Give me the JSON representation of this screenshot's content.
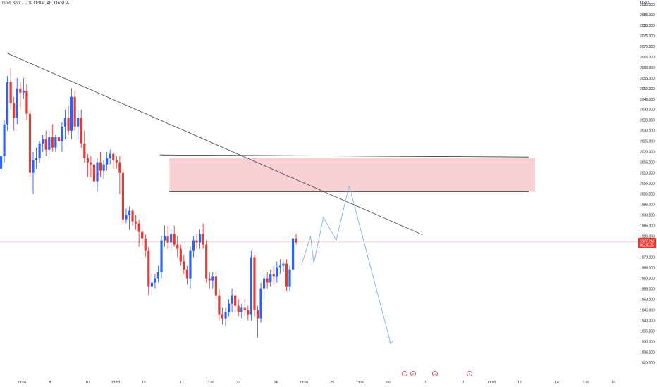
{
  "header": {
    "symbol_title": "Gold Spot / U.S. Dollar, 4h, OANDA",
    "currency": "USD"
  },
  "price_label": {
    "price": "1977.240",
    "countdown": "00:35:25"
  },
  "colors": {
    "up": "#2962ff",
    "down": "#e53935",
    "zone_fill": "#f8d0d5",
    "projection": "#90b7f0",
    "trendline": "#555555",
    "price_line": "#f3a7ae",
    "price_badge": "#e53935"
  },
  "event_icons": [
    {
      "name": "lightning-icon",
      "glyph": "⚡",
      "x_time": "Jun 1 10:00"
    },
    {
      "name": "us-flag-icon",
      "glyph": "★",
      "x_time": "Jun 1 19:00"
    },
    {
      "name": "us-flag-icon",
      "glyph": "★",
      "x_time": "Jun 6 05:00"
    },
    {
      "name": "us-flag-icon",
      "glyph": "★",
      "x_time": "Jun 9 19:00"
    }
  ],
  "chart_data": {
    "type": "candlestick",
    "title": "Gold Spot / U.S. Dollar, 4h, OANDA",
    "ylabel": "USD",
    "ylim": [
      1918,
      2093
    ],
    "yticks": [
      1920.0,
      1925.0,
      1930.0,
      1935.0,
      1940.0,
      1945.0,
      1950.0,
      1955.0,
      1960.0,
      1965.0,
      1970.0,
      1975.0,
      1980.0,
      1985.0,
      1990.0,
      1995.0,
      2000.0,
      2005.0,
      2010.0,
      2015.0,
      2020.0,
      2025.0,
      2030.0,
      2035.0,
      2040.0,
      2045.0,
      2050.0,
      2055.0,
      2060.0,
      2065.0,
      2070.0,
      2075.0,
      2080.0,
      2085.0,
      2090.0
    ],
    "ytick_labels": [
      "1920.000",
      "1925.000",
      "1930.000",
      "1935.000",
      "1940.000",
      "1945.000",
      "1950.000",
      "1955.000",
      "1960.000",
      "1965.000",
      "1970.000",
      "1975.000",
      "1980.000",
      "1985.000",
      "1990.000",
      "1995.000",
      "2000.000",
      "2005.000",
      "2010.000",
      "2015.000",
      "2020.000",
      "2025.000",
      "2030.000",
      "2035.000",
      "2040.000",
      "2045.000",
      "2050.000",
      "2055.000",
      "2060.000",
      "2065.000",
      "2070.000",
      "2075.000",
      "2080.000",
      "2085.000",
      "2090.000"
    ],
    "xtick_labels": [
      "13:00",
      "8",
      "10",
      "13:00",
      "15",
      "17",
      "13:00",
      "22",
      "24",
      "13:00",
      "29",
      "13:00",
      "Jun",
      "5",
      "7",
      "13:00",
      "12",
      "14",
      "13:00",
      "19"
    ],
    "candles": [
      {
        "o": 2012,
        "h": 2020,
        "l": 2010,
        "c": 2018
      },
      {
        "o": 2018,
        "h": 2035,
        "l": 2015,
        "c": 2033
      },
      {
        "o": 2033,
        "h": 2056,
        "l": 2030,
        "c": 2053
      },
      {
        "o": 2053,
        "h": 2060,
        "l": 2040,
        "c": 2043
      },
      {
        "o": 2043,
        "h": 2046,
        "l": 2030,
        "c": 2036
      },
      {
        "o": 2036,
        "h": 2055,
        "l": 2033,
        "c": 2050
      },
      {
        "o": 2050,
        "h": 2053,
        "l": 2040,
        "c": 2048
      },
      {
        "o": 2048,
        "h": 2055,
        "l": 2045,
        "c": 2049
      },
      {
        "o": 2049,
        "h": 2052,
        "l": 2035,
        "c": 2038
      },
      {
        "o": 2038,
        "h": 2040,
        "l": 2008,
        "c": 2010
      },
      {
        "o": 2010,
        "h": 2020,
        "l": 2000,
        "c": 2016
      },
      {
        "o": 2016,
        "h": 2022,
        "l": 2012,
        "c": 2017
      },
      {
        "o": 2017,
        "h": 2025,
        "l": 2015,
        "c": 2024
      },
      {
        "o": 2024,
        "h": 2028,
        "l": 2020,
        "c": 2026
      },
      {
        "o": 2026,
        "h": 2030,
        "l": 2018,
        "c": 2021
      },
      {
        "o": 2021,
        "h": 2030,
        "l": 2019,
        "c": 2027
      },
      {
        "o": 2027,
        "h": 2033,
        "l": 2020,
        "c": 2022
      },
      {
        "o": 2022,
        "h": 2028,
        "l": 2020,
        "c": 2027
      },
      {
        "o": 2027,
        "h": 2034,
        "l": 2023,
        "c": 2025
      },
      {
        "o": 2025,
        "h": 2034,
        "l": 2020,
        "c": 2032
      },
      {
        "o": 2032,
        "h": 2040,
        "l": 2026,
        "c": 2036
      },
      {
        "o": 2036,
        "h": 2042,
        "l": 2028,
        "c": 2030
      },
      {
        "o": 2030,
        "h": 2050,
        "l": 2026,
        "c": 2046
      },
      {
        "o": 2046,
        "h": 2049,
        "l": 2030,
        "c": 2032
      },
      {
        "o": 2032,
        "h": 2040,
        "l": 2026,
        "c": 2036
      },
      {
        "o": 2036,
        "h": 2040,
        "l": 2022,
        "c": 2024
      },
      {
        "o": 2024,
        "h": 2030,
        "l": 2015,
        "c": 2017
      },
      {
        "o": 2017,
        "h": 2019,
        "l": 2008,
        "c": 2015
      },
      {
        "o": 2015,
        "h": 2018,
        "l": 2008,
        "c": 2014
      },
      {
        "o": 2014,
        "h": 2016,
        "l": 2003,
        "c": 2006
      },
      {
        "o": 2006,
        "h": 2017,
        "l": 2001,
        "c": 2015
      },
      {
        "o": 2015,
        "h": 2020,
        "l": 2008,
        "c": 2011
      },
      {
        "o": 2011,
        "h": 2016,
        "l": 2007,
        "c": 2014
      },
      {
        "o": 2014,
        "h": 2020,
        "l": 2011,
        "c": 2017
      },
      {
        "o": 2017,
        "h": 2021,
        "l": 2014,
        "c": 2019
      },
      {
        "o": 2019,
        "h": 2020,
        "l": 2012,
        "c": 2016
      },
      {
        "o": 2016,
        "h": 2018,
        "l": 2012,
        "c": 2015
      },
      {
        "o": 2015,
        "h": 2018,
        "l": 2000,
        "c": 2010
      },
      {
        "o": 2010,
        "h": 2012,
        "l": 1986,
        "c": 1988
      },
      {
        "o": 1988,
        "h": 1993,
        "l": 1986,
        "c": 1990
      },
      {
        "o": 1990,
        "h": 1994,
        "l": 1983,
        "c": 1992
      },
      {
        "o": 1992,
        "h": 1993,
        "l": 1985,
        "c": 1987
      },
      {
        "o": 1987,
        "h": 1990,
        "l": 1983,
        "c": 1986
      },
      {
        "o": 1986,
        "h": 1988,
        "l": 1975,
        "c": 1982
      },
      {
        "o": 1982,
        "h": 1985,
        "l": 1975,
        "c": 1979
      },
      {
        "o": 1979,
        "h": 1981,
        "l": 1970,
        "c": 1973
      },
      {
        "o": 1973,
        "h": 1975,
        "l": 1952,
        "c": 1956
      },
      {
        "o": 1956,
        "h": 1962,
        "l": 1952,
        "c": 1958
      },
      {
        "o": 1958,
        "h": 1962,
        "l": 1955,
        "c": 1960
      },
      {
        "o": 1960,
        "h": 1966,
        "l": 1958,
        "c": 1963
      },
      {
        "o": 1963,
        "h": 1980,
        "l": 1960,
        "c": 1978
      },
      {
        "o": 1978,
        "h": 1985,
        "l": 1975,
        "c": 1980
      },
      {
        "o": 1980,
        "h": 1985,
        "l": 1974,
        "c": 1977
      },
      {
        "o": 1977,
        "h": 1983,
        "l": 1973,
        "c": 1981
      },
      {
        "o": 1981,
        "h": 1985,
        "l": 1975,
        "c": 1976
      },
      {
        "o": 1976,
        "h": 1980,
        "l": 1970,
        "c": 1974
      },
      {
        "o": 1974,
        "h": 1976,
        "l": 1966,
        "c": 1968
      },
      {
        "o": 1968,
        "h": 1971,
        "l": 1962,
        "c": 1964
      },
      {
        "o": 1964,
        "h": 1966,
        "l": 1957,
        "c": 1960
      },
      {
        "o": 1960,
        "h": 1975,
        "l": 1955,
        "c": 1973
      },
      {
        "o": 1973,
        "h": 1980,
        "l": 1970,
        "c": 1978
      },
      {
        "o": 1978,
        "h": 1981,
        "l": 1974,
        "c": 1977
      },
      {
        "o": 1977,
        "h": 1983,
        "l": 1974,
        "c": 1981
      },
      {
        "o": 1981,
        "h": 1986,
        "l": 1974,
        "c": 1976
      },
      {
        "o": 1976,
        "h": 1978,
        "l": 1958,
        "c": 1960
      },
      {
        "o": 1960,
        "h": 1963,
        "l": 1955,
        "c": 1959
      },
      {
        "o": 1959,
        "h": 1963,
        "l": 1955,
        "c": 1961
      },
      {
        "o": 1961,
        "h": 1963,
        "l": 1950,
        "c": 1952
      },
      {
        "o": 1952,
        "h": 1955,
        "l": 1940,
        "c": 1943
      },
      {
        "o": 1943,
        "h": 1946,
        "l": 1938,
        "c": 1941
      },
      {
        "o": 1941,
        "h": 1946,
        "l": 1937,
        "c": 1944
      },
      {
        "o": 1944,
        "h": 1950,
        "l": 1942,
        "c": 1948
      },
      {
        "o": 1948,
        "h": 1955,
        "l": 1944,
        "c": 1952
      },
      {
        "o": 1952,
        "h": 1954,
        "l": 1944,
        "c": 1947
      },
      {
        "o": 1947,
        "h": 1950,
        "l": 1942,
        "c": 1944
      },
      {
        "o": 1944,
        "h": 1948,
        "l": 1941,
        "c": 1946
      },
      {
        "o": 1946,
        "h": 1950,
        "l": 1942,
        "c": 1945
      },
      {
        "o": 1945,
        "h": 1947,
        "l": 1940,
        "c": 1943
      },
      {
        "o": 1943,
        "h": 1973,
        "l": 1940,
        "c": 1970
      },
      {
        "o": 1970,
        "h": 1971,
        "l": 1942,
        "c": 1945
      },
      {
        "o": 1945,
        "h": 1947,
        "l": 1932,
        "c": 1941
      },
      {
        "o": 1941,
        "h": 1958,
        "l": 1939,
        "c": 1955
      },
      {
        "o": 1955,
        "h": 1962,
        "l": 1950,
        "c": 1960
      },
      {
        "o": 1960,
        "h": 1963,
        "l": 1955,
        "c": 1958
      },
      {
        "o": 1958,
        "h": 1964,
        "l": 1956,
        "c": 1962
      },
      {
        "o": 1962,
        "h": 1966,
        "l": 1957,
        "c": 1961
      },
      {
        "o": 1961,
        "h": 1968,
        "l": 1958,
        "c": 1965
      },
      {
        "o": 1965,
        "h": 1969,
        "l": 1962,
        "c": 1966
      },
      {
        "o": 1966,
        "h": 1968,
        "l": 1963,
        "c": 1967
      },
      {
        "o": 1967,
        "h": 1969,
        "l": 1954,
        "c": 1956
      },
      {
        "o": 1956,
        "h": 1966,
        "l": 1954,
        "c": 1964
      },
      {
        "o": 1964,
        "h": 1982,
        "l": 1963,
        "c": 1979
      },
      {
        "o": 1979,
        "h": 1981,
        "l": 1976,
        "c": 1977
      }
    ],
    "resistance_zone": {
      "low": 2001,
      "high": 2017
    },
    "trendline": [
      {
        "candle": 1.5,
        "price": 2067
      },
      {
        "candle": 134,
        "price": 1982
      }
    ],
    "projection_path": [
      {
        "candle": 93.8,
        "price": 1967
      },
      {
        "candle": 96.5,
        "price": 1980
      },
      {
        "candle": 97.5,
        "price": 1967
      },
      {
        "candle": 100.5,
        "price": 1989
      },
      {
        "candle": 104.5,
        "price": 1978
      },
      {
        "candle": 108.5,
        "price": 2004
      },
      {
        "candle": 121.5,
        "price": 1929
      }
    ],
    "current_price": 1977.24
  }
}
